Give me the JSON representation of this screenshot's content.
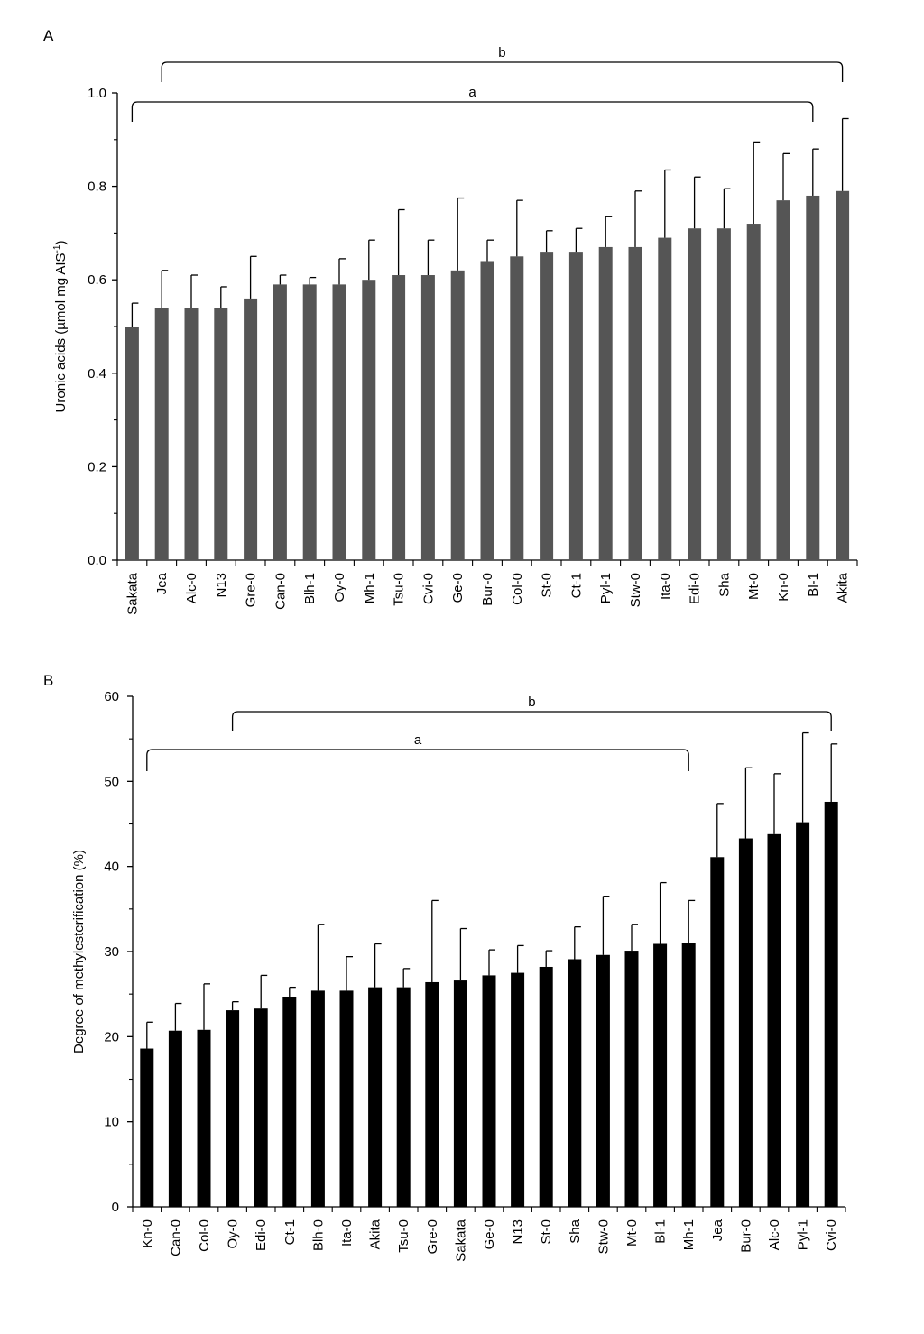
{
  "panels": [
    {
      "label": "A",
      "chart_data": {
        "type": "bar",
        "ylabel": "Uronic acids (µmol mg AIS",
        "ylabel_sup": "-1",
        "ylabel_close": ")",
        "xlabel": "",
        "ylim": [
          0,
          1.0
        ],
        "yticks": [
          "0.0",
          "0.2",
          "0.4",
          "0.6",
          "0.8",
          "1.0"
        ],
        "bar_color": "#555555",
        "error_bars": "upper",
        "categories": [
          "Sakata",
          "Jea",
          "Alc-0",
          "N13",
          "Gre-0",
          "Can-0",
          "Blh-1",
          "Oy-0",
          "Mh-1",
          "Tsu-0",
          "Cvi-0",
          "Ge-0",
          "Bur-0",
          "Col-0",
          "St-0",
          "Ct-1",
          "Pyl-1",
          "Stw-0",
          "Ita-0",
          "Edi-0",
          "Sha",
          "Mt-0",
          "Kn-0",
          "Bl-1",
          "Akita"
        ],
        "values": [
          0.5,
          0.54,
          0.54,
          0.54,
          0.56,
          0.59,
          0.59,
          0.59,
          0.6,
          0.61,
          0.61,
          0.62,
          0.64,
          0.65,
          0.66,
          0.66,
          0.67,
          0.67,
          0.69,
          0.71,
          0.71,
          0.72,
          0.77,
          0.78,
          0.79
        ],
        "errors": [
          0.05,
          0.08,
          0.07,
          0.045,
          0.09,
          0.02,
          0.015,
          0.055,
          0.085,
          0.14,
          0.075,
          0.155,
          0.045,
          0.12,
          0.045,
          0.05,
          0.065,
          0.12,
          0.145,
          0.11,
          0.085,
          0.175,
          0.1,
          0.1,
          0.155
        ],
        "brackets": [
          {
            "label": "b",
            "from": "Jea",
            "to": "Akita"
          },
          {
            "label": "a",
            "from": "Sakata",
            "to": "Bl-1"
          }
        ]
      }
    },
    {
      "label": "B",
      "chart_data": {
        "type": "bar",
        "ylabel": "Degree of methylesterification (%)",
        "xlabel": "",
        "ylim": [
          0,
          60
        ],
        "yticks": [
          "0",
          "10",
          "20",
          "30",
          "40",
          "50",
          "60"
        ],
        "bar_color": "#000000",
        "error_bars": "upper",
        "categories": [
          "Kn-0",
          "Can-0",
          "Col-0",
          "Oy-0",
          "Edi-0",
          "Ct-1",
          "Blh-0",
          "Ita-0",
          "Akita",
          "Tsu-0",
          "Gre-0",
          "Sakata",
          "Ge-0",
          "N13",
          "St-0",
          "Sha",
          "Stw-0",
          "Mt-0",
          "Bl-1",
          "Mh-1",
          "Jea",
          "Bur-0",
          "Alc-0",
          "Pyl-1",
          "Cvi-0"
        ],
        "values": [
          18.6,
          20.7,
          20.8,
          23.1,
          23.3,
          24.7,
          25.4,
          25.4,
          25.8,
          25.8,
          26.4,
          26.6,
          27.2,
          27.5,
          28.2,
          29.1,
          29.6,
          30.1,
          30.9,
          31.0,
          41.1,
          43.3,
          43.8,
          45.2,
          47.6
        ],
        "errors": [
          3.1,
          3.2,
          5.4,
          1.0,
          3.9,
          1.1,
          7.8,
          4.0,
          5.1,
          2.2,
          9.6,
          6.1,
          3.0,
          3.2,
          1.9,
          3.8,
          6.9,
          3.1,
          7.2,
          5.0,
          6.3,
          8.3,
          7.1,
          10.5,
          6.8
        ],
        "brackets": [
          {
            "label": "b",
            "from": "Oy-0",
            "to": "Cvi-0"
          },
          {
            "label": "a",
            "from": "Kn-0",
            "to": "Mh-1"
          }
        ]
      }
    }
  ]
}
